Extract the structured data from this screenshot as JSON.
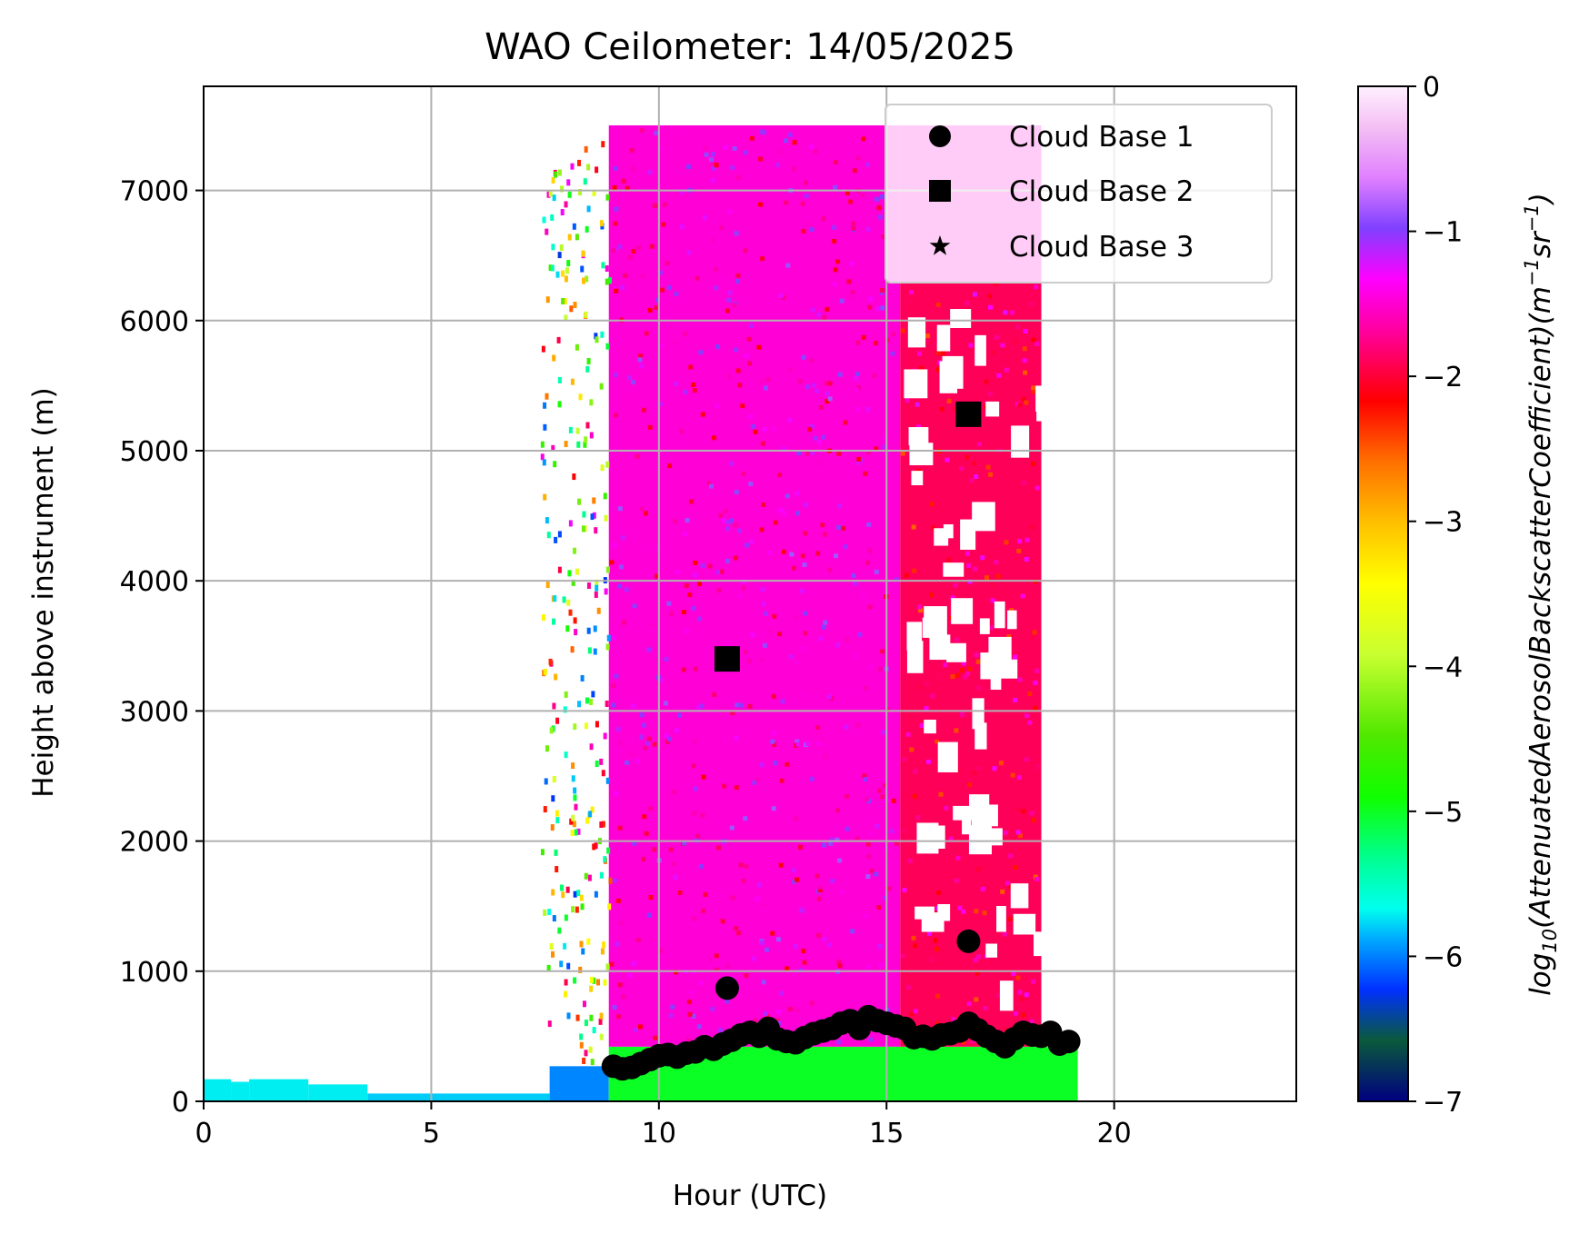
{
  "chart_data": {
    "type": "heatmap",
    "title": "WAO Ceilometer: 14/05/2025",
    "xlabel": "Hour (UTC)",
    "ylabel": "Height above instrument (m)",
    "xlim": [
      0,
      24
    ],
    "ylim": [
      0,
      7800
    ],
    "x_ticks": [
      0,
      5,
      10,
      15,
      20
    ],
    "y_ticks": [
      0,
      1000,
      2000,
      3000,
      4000,
      5000,
      6000,
      7000
    ],
    "grid": true,
    "legend": {
      "placement": "top-right",
      "entries": [
        {
          "label": "Cloud Base 1",
          "marker": "circle"
        },
        {
          "label": "Cloud Base 2",
          "marker": "square"
        },
        {
          "label": "Cloud Base 3",
          "marker": "star"
        }
      ]
    },
    "colorbar": {
      "label_base": "log",
      "label_sub": "10",
      "label_main": "(AttenuatedAerosolBackscatterCoefficient)(m",
      "label_exp1": "−1",
      "label_mid": "sr",
      "label_exp2": "−1",
      "label_end": ")",
      "range": [
        -7,
        0
      ],
      "ticks": [
        0,
        -1,
        -2,
        -3,
        -4,
        -5,
        -6,
        -7
      ],
      "tick_labels": [
        "0",
        "−1",
        "−2",
        "−3",
        "−4",
        "−5",
        "−6",
        "−7"
      ],
      "colormap": "gist_ncar"
    },
    "backscatter_regions": [
      {
        "x": [
          0,
          0.6
        ],
        "y": [
          0,
          170
        ],
        "value": -5.7
      },
      {
        "x": [
          0.6,
          1.0
        ],
        "y": [
          0,
          150
        ],
        "value": -5.7
      },
      {
        "x": [
          1.0,
          2.3
        ],
        "y": [
          0,
          170
        ],
        "value": -5.7
      },
      {
        "x": [
          2.3,
          3.6
        ],
        "y": [
          0,
          130
        ],
        "value": -5.7
      },
      {
        "x": [
          3.6,
          7.6
        ],
        "y": [
          0,
          60
        ],
        "value": -5.8
      },
      {
        "x": [
          7.6,
          8.9
        ],
        "y": [
          0,
          270
        ],
        "value": -6.0
      },
      {
        "x": [
          8.9,
          19.2
        ],
        "y": [
          0,
          420
        ],
        "value": -5.0
      },
      {
        "x": [
          8.9,
          15.3
        ],
        "y": [
          420,
          7500
        ],
        "value": -1.5
      },
      {
        "x": [
          15.3,
          18.4
        ],
        "y": [
          420,
          6300
        ],
        "value": -1.9
      },
      {
        "x": [
          15.3,
          18.4
        ],
        "y": [
          6300,
          7500
        ],
        "value": -1.5
      }
    ],
    "series": [
      {
        "name": "Cloud Base 1",
        "marker": "circle",
        "points": [
          [
            9.0,
            270
          ],
          [
            9.2,
            250
          ],
          [
            9.4,
            260
          ],
          [
            9.6,
            290
          ],
          [
            9.8,
            320
          ],
          [
            10.0,
            350
          ],
          [
            10.2,
            360
          ],
          [
            10.4,
            340
          ],
          [
            10.6,
            370
          ],
          [
            10.8,
            380
          ],
          [
            11.0,
            420
          ],
          [
            11.2,
            400
          ],
          [
            11.4,
            440
          ],
          [
            11.6,
            470
          ],
          [
            11.8,
            510
          ],
          [
            12.0,
            530
          ],
          [
            12.2,
            500
          ],
          [
            12.4,
            560
          ],
          [
            12.6,
            480
          ],
          [
            12.8,
            460
          ],
          [
            13.0,
            450
          ],
          [
            13.2,
            490
          ],
          [
            13.4,
            520
          ],
          [
            13.6,
            540
          ],
          [
            13.8,
            560
          ],
          [
            14.0,
            600
          ],
          [
            14.2,
            620
          ],
          [
            14.4,
            560
          ],
          [
            14.6,
            650
          ],
          [
            14.8,
            620
          ],
          [
            15.0,
            600
          ],
          [
            15.2,
            580
          ],
          [
            15.4,
            560
          ],
          [
            15.6,
            490
          ],
          [
            15.8,
            500
          ],
          [
            16.0,
            480
          ],
          [
            16.2,
            510
          ],
          [
            16.4,
            520
          ],
          [
            16.6,
            540
          ],
          [
            16.8,
            600
          ],
          [
            17.0,
            550
          ],
          [
            17.2,
            500
          ],
          [
            17.4,
            460
          ],
          [
            17.6,
            420
          ],
          [
            17.8,
            480
          ],
          [
            18.0,
            530
          ],
          [
            18.2,
            510
          ],
          [
            18.4,
            500
          ],
          [
            18.6,
            530
          ],
          [
            18.8,
            440
          ],
          [
            19.0,
            460
          ],
          [
            11.5,
            870
          ],
          [
            16.8,
            1230
          ]
        ]
      },
      {
        "name": "Cloud Base 2",
        "marker": "square",
        "points": [
          [
            11.5,
            3400
          ],
          [
            16.8,
            5280
          ]
        ]
      },
      {
        "name": "Cloud Base 3",
        "marker": "star",
        "points": []
      }
    ]
  }
}
